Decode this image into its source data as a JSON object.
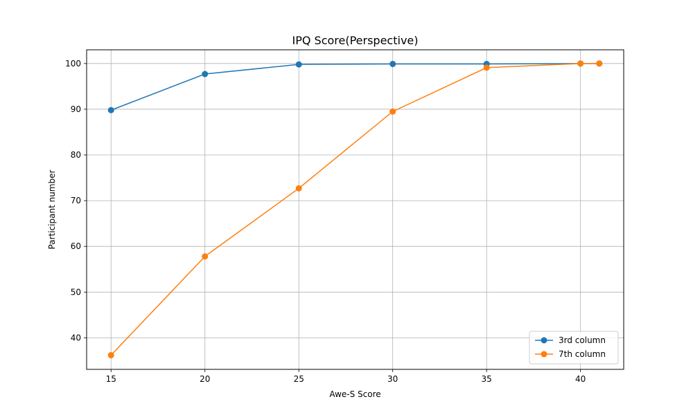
{
  "chart_data": {
    "type": "line",
    "title": "IPQ Score(Perspective)",
    "xlabel": "Awe-S Score",
    "ylabel": "Participant number",
    "xlim": [
      13.7,
      42.3
    ],
    "ylim": [
      33.1,
      103.0
    ],
    "xticks": [
      15,
      20,
      25,
      30,
      35,
      40
    ],
    "yticks": [
      40,
      50,
      60,
      70,
      80,
      90,
      100
    ],
    "grid": true,
    "legend_position": "lower-right",
    "series": [
      {
        "name": "3rd column",
        "color": "#1f77b4",
        "marker": "circle",
        "x": [
          15,
          20,
          25,
          30,
          35,
          40,
          41
        ],
        "y": [
          89.8,
          97.7,
          99.8,
          99.9,
          99.9,
          100.0,
          100.0
        ]
      },
      {
        "name": "7th column",
        "color": "#ff7f0e",
        "marker": "circle",
        "x": [
          15,
          20,
          25,
          30,
          35,
          40,
          41
        ],
        "y": [
          36.2,
          57.8,
          72.7,
          89.5,
          99.1,
          100.0,
          100.0
        ]
      }
    ]
  }
}
